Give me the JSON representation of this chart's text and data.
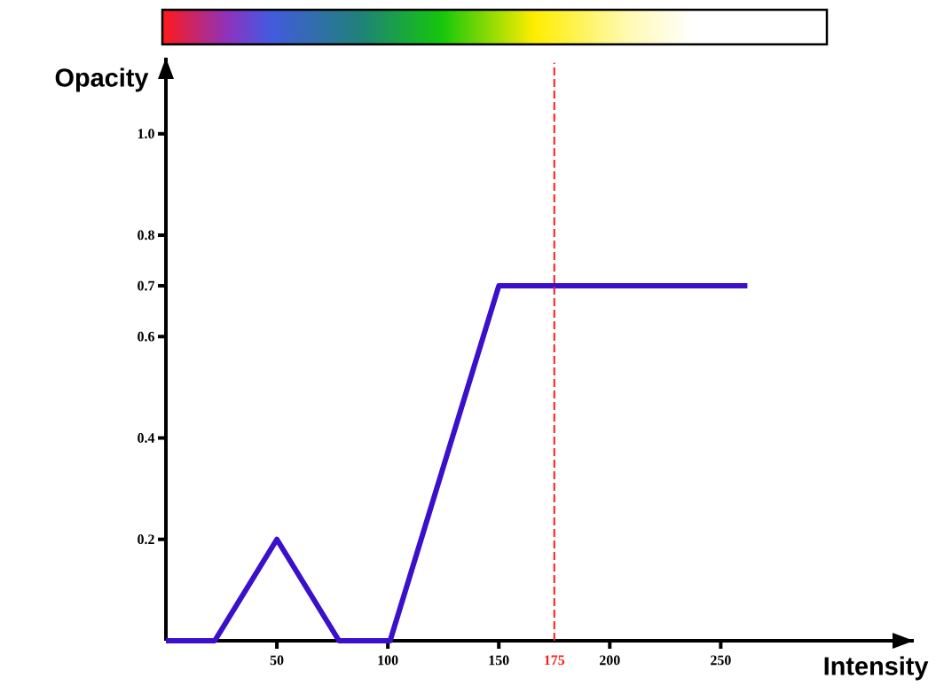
{
  "chart_data": {
    "type": "line",
    "xlabel": "Intensity",
    "ylabel": "Opacity",
    "x": [
      0,
      22,
      50,
      78,
      101,
      150,
      262
    ],
    "values": [
      0,
      0,
      0.2,
      0,
      0,
      0.7,
      0.7
    ],
    "color": "#3a10cc",
    "xlim": [
      0,
      337
    ],
    "ylim": [
      0,
      1.15
    ],
    "xticks": [
      50,
      100,
      150,
      200,
      250
    ],
    "yticks": [
      0.2,
      0.4,
      0.6,
      0.7,
      0.8,
      {
        "value": 1,
        "label": "1.0"
      }
    ],
    "ref_lines": [
      {
        "axis": "x",
        "value": 175,
        "label": "175",
        "color": "#ff1a1a",
        "line_style": "dashed"
      }
    ],
    "grid": false
  }
}
